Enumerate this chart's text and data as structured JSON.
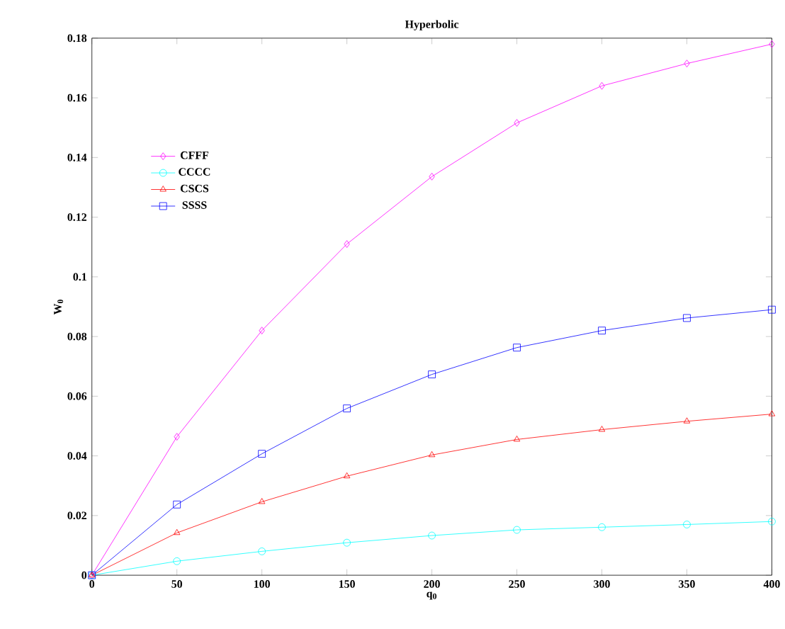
{
  "chart_data": {
    "type": "line",
    "title": "Hyperbolic",
    "xlabel": "q$_{0}$",
    "ylabel": "W$_{0}$",
    "x": [
      0,
      50,
      100,
      150,
      200,
      250,
      300,
      350,
      400
    ],
    "series": [
      {
        "name": "CFFF",
        "color": "#ff00ff",
        "marker": "diamond",
        "values": [
          0,
          0.0464,
          0.082,
          0.111,
          0.1336,
          0.1516,
          0.164,
          0.1715,
          0.178
        ]
      },
      {
        "name": "CCCC",
        "color": "#00ffff",
        "marker": "circle",
        "values": [
          0,
          0.0047,
          0.008,
          0.0109,
          0.0133,
          0.0152,
          0.0161,
          0.017,
          0.018
        ]
      },
      {
        "name": "CSCS",
        "color": "#ff0000",
        "marker": "triangle",
        "values": [
          0,
          0.0142,
          0.0246,
          0.0332,
          0.0403,
          0.0455,
          0.0488,
          0.0516,
          0.054
        ]
      },
      {
        "name": "SSSS",
        "color": "#0000ff",
        "marker": "square",
        "values": [
          0,
          0.0237,
          0.0407,
          0.0559,
          0.0673,
          0.0763,
          0.082,
          0.0862,
          0.089
        ]
      }
    ],
    "xlim": [
      0,
      400
    ],
    "xticks": [
      0,
      50,
      100,
      150,
      200,
      250,
      300,
      350,
      400
    ],
    "ylim": [
      0,
      0.18
    ],
    "yticks": [
      0,
      0.02,
      0.04,
      0.06,
      0.08,
      0.1,
      0.12,
      0.14,
      0.16,
      0.18
    ],
    "legend": "top left",
    "grid": false
  }
}
